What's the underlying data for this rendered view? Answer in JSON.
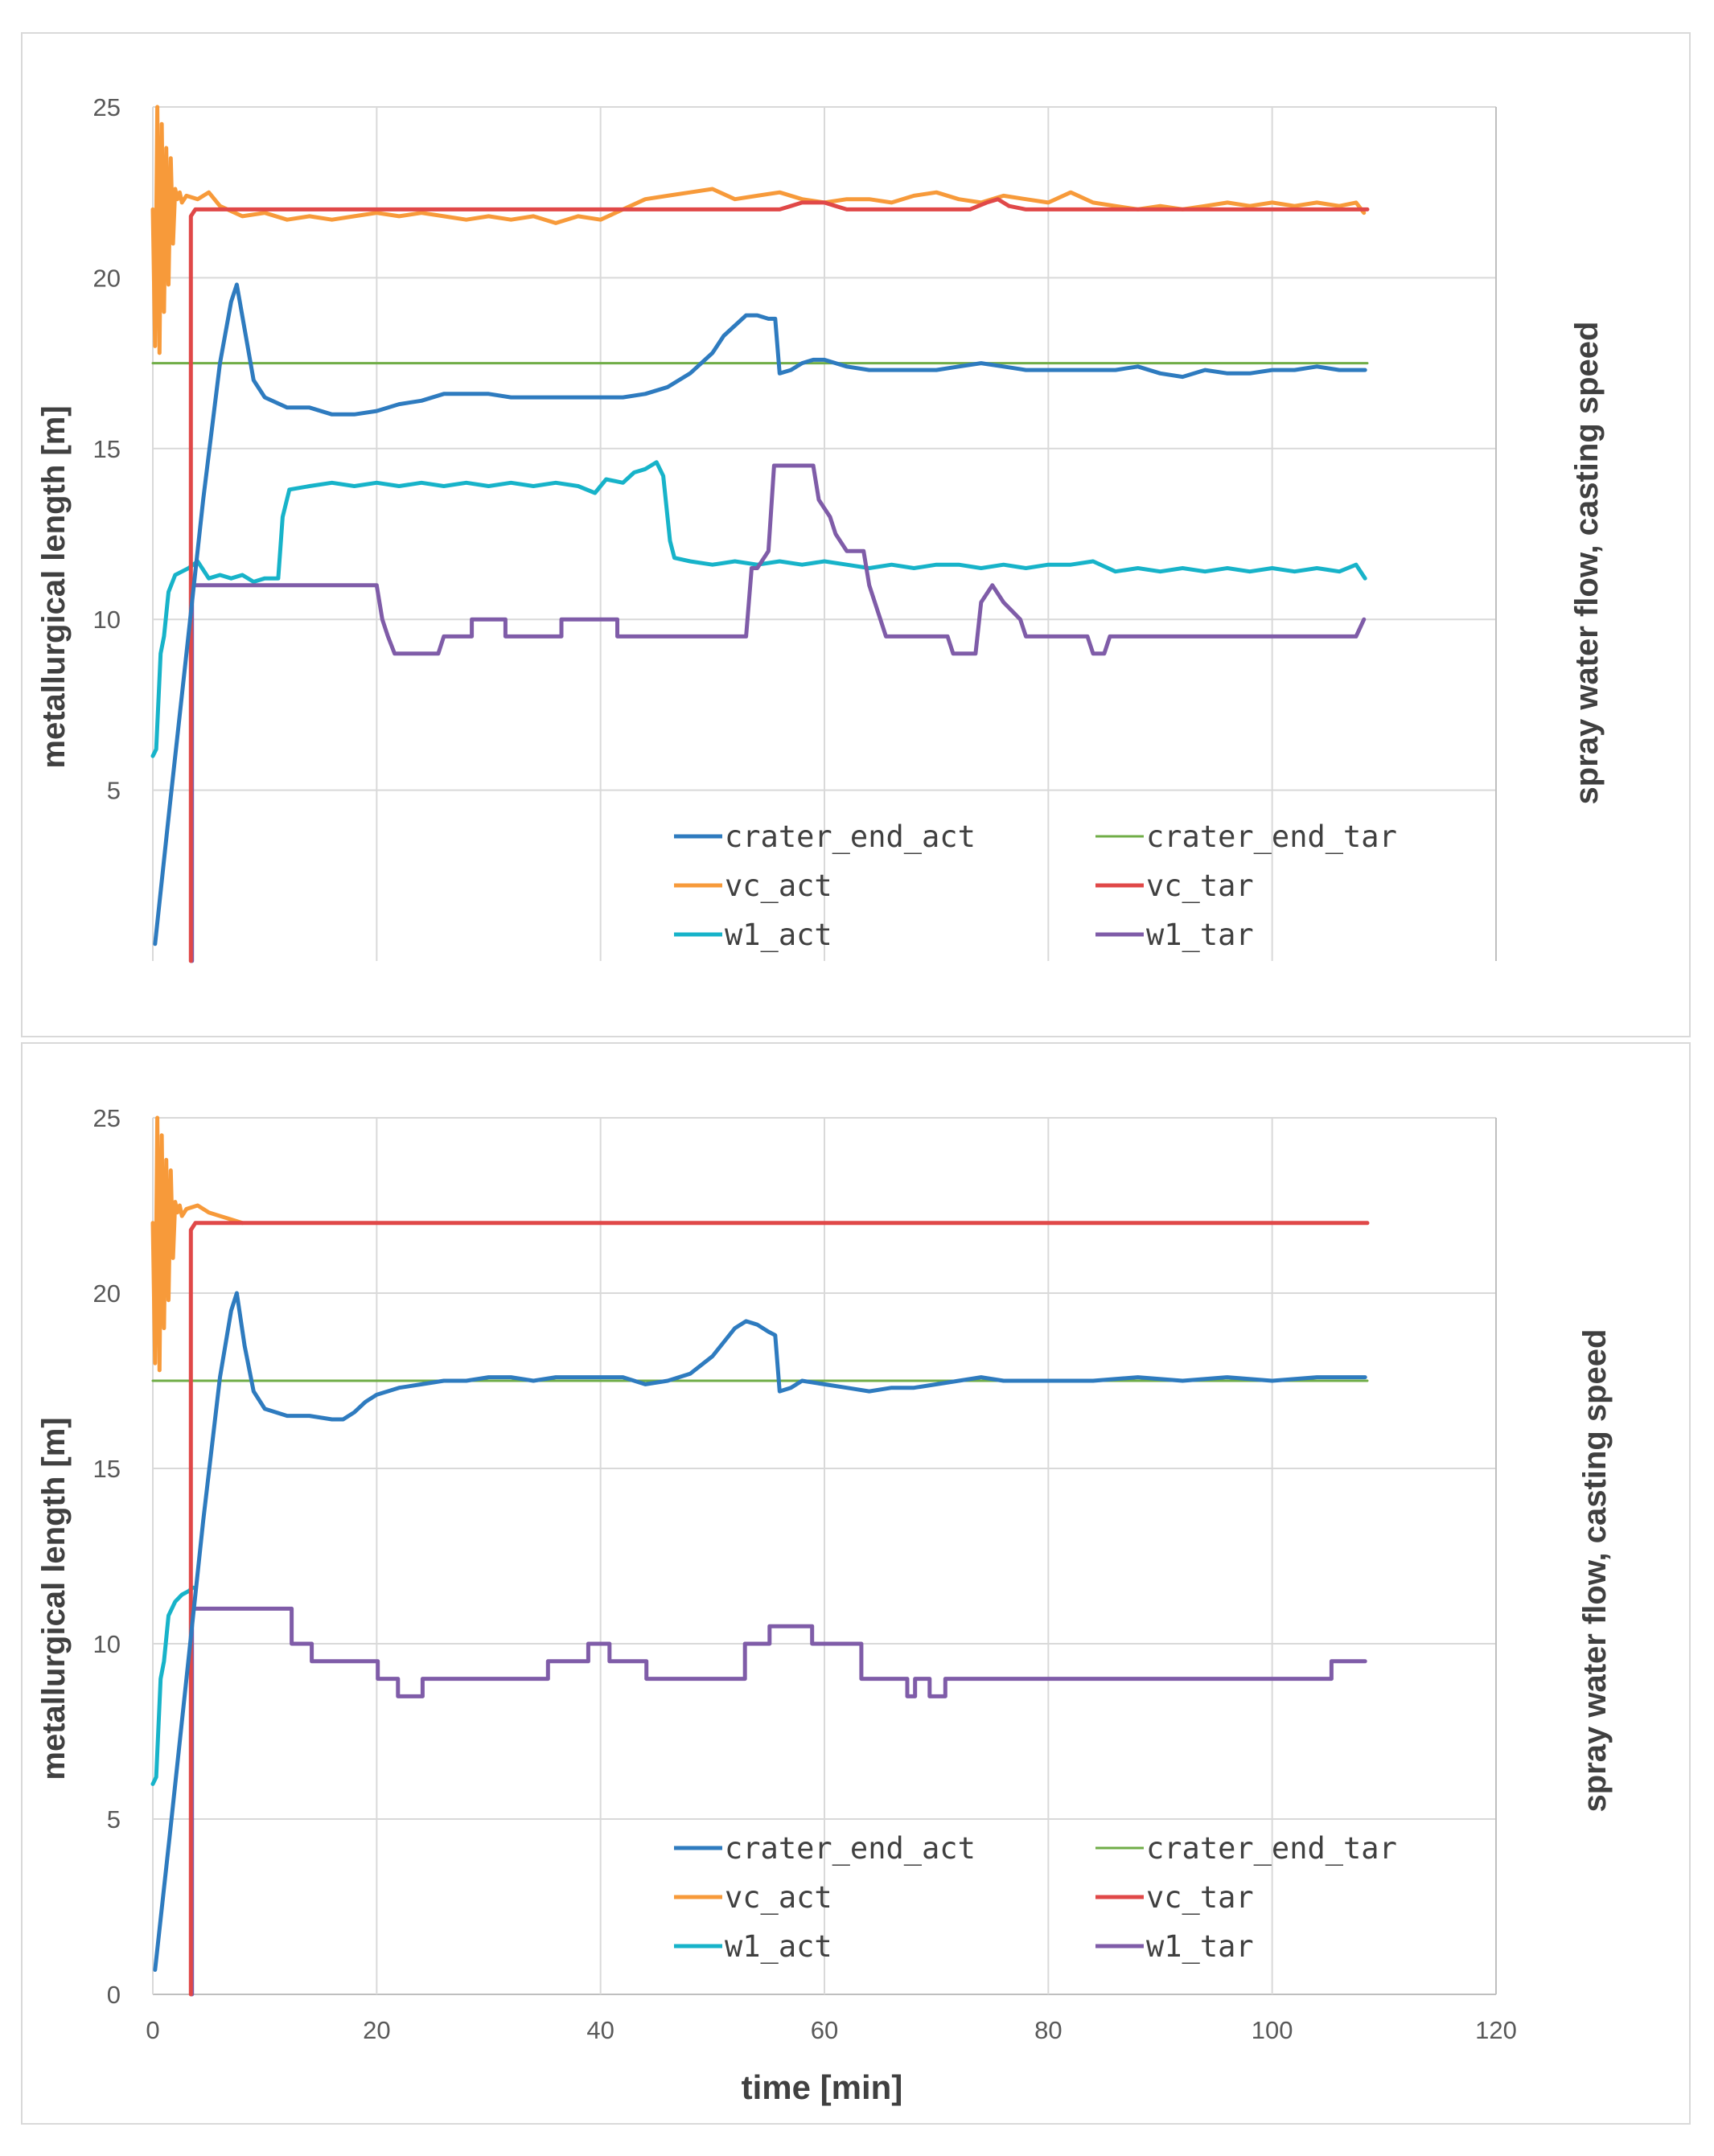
{
  "chart_data": [
    {
      "type": "line",
      "xlabel": "",
      "ylabel": "metallurgical length [m]",
      "y2label": "spray water flow, casting speed",
      "xlim": [
        0,
        120
      ],
      "ylim": [
        0,
        25
      ],
      "xticks": [],
      "yticks": [
        "5",
        "10",
        "15",
        "20",
        "25"
      ],
      "grid": true,
      "legend_position": "bottom-right",
      "series": [
        {
          "name": "crater_end_tar",
          "color": "#70ad47",
          "width": 3,
          "x": [
            0,
            108.5
          ],
          "y": [
            17.5,
            17.5
          ]
        },
        {
          "name": "w1_act",
          "color": "#17b3c9",
          "width": 5,
          "x": [
            0,
            0.3,
            0.7,
            1.0,
            1.4,
            2.0,
            2.6,
            3.2,
            4.0,
            5.0,
            6.0,
            7.0,
            8.0,
            9.0,
            10.0,
            11.2,
            11.6,
            12.2,
            14,
            16,
            18,
            20,
            22,
            24,
            26,
            28,
            30,
            32,
            34,
            36,
            38,
            39.5,
            40.5,
            42,
            43,
            44,
            45,
            45.6,
            46.2,
            46.6,
            48,
            50,
            52,
            54,
            56,
            58,
            60,
            62,
            64,
            66,
            68,
            70,
            72,
            74,
            76,
            78,
            80,
            82,
            84,
            86,
            88,
            90,
            92,
            94,
            96,
            98,
            100,
            102,
            104,
            106,
            107.5,
            108.3
          ],
          "y": [
            6.0,
            6.2,
            9.0,
            9.5,
            10.8,
            11.3,
            11.4,
            11.5,
            11.7,
            11.2,
            11.3,
            11.2,
            11.3,
            11.1,
            11.2,
            11.2,
            13.0,
            13.8,
            13.9,
            14.0,
            13.9,
            14.0,
            13.9,
            14.0,
            13.9,
            14.0,
            13.9,
            14.0,
            13.9,
            14.0,
            13.9,
            13.7,
            14.1,
            14.0,
            14.3,
            14.4,
            14.6,
            14.2,
            12.3,
            11.8,
            11.7,
            11.6,
            11.7,
            11.6,
            11.7,
            11.6,
            11.7,
            11.6,
            11.5,
            11.6,
            11.5,
            11.6,
            11.6,
            11.5,
            11.6,
            11.5,
            11.6,
            11.6,
            11.7,
            11.4,
            11.5,
            11.4,
            11.5,
            11.4,
            11.5,
            11.4,
            11.5,
            11.4,
            11.5,
            11.4,
            11.6,
            11.2
          ]
        },
        {
          "name": "w1_tar",
          "color": "#7f5ca8",
          "width": 5,
          "x": [
            3.5,
            3.5,
            4.0,
            6,
            10,
            15,
            20,
            20.5,
            21,
            21.6,
            25.5,
            26,
            28.5,
            28.5,
            31.5,
            31.5,
            36.5,
            36.5,
            41.5,
            41.5,
            48,
            53,
            53.5,
            54,
            55,
            55.5,
            56,
            59,
            59.5,
            60.5,
            61,
            62,
            63.5,
            64,
            65,
            65.5,
            71,
            71.5,
            73.5,
            74,
            75,
            76,
            77.5,
            78,
            83.5,
            84,
            85,
            85.5,
            107.5,
            108.2
          ],
          "y": [
            0,
            11.0,
            11.0,
            11.0,
            11.0,
            11.0,
            11.0,
            10.0,
            9.5,
            9.0,
            9.0,
            9.5,
            9.5,
            10.0,
            10.0,
            9.5,
            9.5,
            10.0,
            10.0,
            9.5,
            9.5,
            9.5,
            11.5,
            11.5,
            12.0,
            14.5,
            14.5,
            14.5,
            13.5,
            13.0,
            12.5,
            12.0,
            12.0,
            11.0,
            10.0,
            9.5,
            9.5,
            9.0,
            9.0,
            10.5,
            11.0,
            10.5,
            10.0,
            9.5,
            9.5,
            9.0,
            9.0,
            9.5,
            9.5,
            10.0
          ]
        },
        {
          "name": "vc_act",
          "color": "#f79a3a",
          "width": 5,
          "x": [
            0,
            0.2,
            0.4,
            0.6,
            0.8,
            1.0,
            1.2,
            1.4,
            1.6,
            1.8,
            2.0,
            2.2,
            2.4,
            2.6,
            3.0,
            4.0,
            5.0,
            6.0,
            8,
            10,
            12,
            14,
            16,
            18,
            20,
            22,
            24,
            26,
            28,
            30,
            32,
            34,
            36,
            38,
            40,
            42,
            44,
            46,
            48,
            50,
            52,
            54,
            56,
            58,
            60,
            62,
            64,
            66,
            68,
            70,
            72,
            74,
            76,
            78,
            80,
            82,
            84,
            86,
            88,
            90,
            92,
            94,
            96,
            98,
            100,
            102,
            104,
            106,
            107.5,
            108.2
          ],
          "y": [
            22.0,
            18.0,
            25.0,
            17.8,
            24.5,
            19.0,
            23.8,
            19.8,
            23.5,
            21.0,
            22.6,
            22.3,
            22.5,
            22.2,
            22.4,
            22.3,
            22.5,
            22.1,
            21.8,
            21.9,
            21.7,
            21.8,
            21.7,
            21.8,
            21.9,
            21.8,
            21.9,
            21.8,
            21.7,
            21.8,
            21.7,
            21.8,
            21.6,
            21.8,
            21.7,
            22.0,
            22.3,
            22.4,
            22.5,
            22.6,
            22.3,
            22.4,
            22.5,
            22.3,
            22.2,
            22.3,
            22.3,
            22.2,
            22.4,
            22.5,
            22.3,
            22.2,
            22.4,
            22.3,
            22.2,
            22.5,
            22.2,
            22.1,
            22.0,
            22.1,
            22.0,
            22.1,
            22.2,
            22.1,
            22.2,
            22.1,
            22.2,
            22.1,
            22.2,
            21.9
          ]
        },
        {
          "name": "vc_tar",
          "color": "#e04848",
          "width": 5,
          "x": [
            3.4,
            3.4,
            3.8,
            56,
            57,
            58,
            60,
            61,
            62,
            63,
            73,
            74.5,
            75.5,
            76.5,
            78,
            108.5
          ],
          "y": [
            0,
            21.8,
            22.0,
            22.0,
            22.1,
            22.2,
            22.2,
            22.1,
            22.0,
            22.0,
            22.0,
            22.2,
            22.3,
            22.1,
            22.0,
            22.0
          ]
        },
        {
          "name": "crater_end_act",
          "color": "#2e7bbf",
          "width": 5,
          "x": [
            0.2,
            1.5,
            3.0,
            4.5,
            6.0,
            7.0,
            7.5,
            8.2,
            9.0,
            10,
            12,
            14,
            16,
            18,
            20,
            22,
            24,
            26,
            28,
            30,
            32,
            34,
            36,
            38,
            40,
            42,
            44,
            46,
            48,
            50,
            51,
            52,
            53,
            54,
            55,
            55.6,
            56,
            57,
            58,
            59,
            60,
            61,
            62,
            64,
            66,
            68,
            70,
            72,
            74,
            76,
            78,
            80,
            82,
            84,
            86,
            88,
            90,
            92,
            94,
            96,
            98,
            100,
            102,
            104,
            106,
            108.3
          ],
          "y": [
            0.5,
            4.5,
            9.0,
            13.5,
            17.5,
            19.3,
            19.8,
            18.5,
            17.0,
            16.5,
            16.2,
            16.2,
            16.0,
            16.0,
            16.1,
            16.3,
            16.4,
            16.6,
            16.6,
            16.6,
            16.5,
            16.5,
            16.5,
            16.5,
            16.5,
            16.5,
            16.6,
            16.8,
            17.2,
            17.8,
            18.3,
            18.6,
            18.9,
            18.9,
            18.8,
            18.8,
            17.2,
            17.3,
            17.5,
            17.6,
            17.6,
            17.5,
            17.4,
            17.3,
            17.3,
            17.3,
            17.3,
            17.4,
            17.5,
            17.4,
            17.3,
            17.3,
            17.3,
            17.3,
            17.3,
            17.4,
            17.2,
            17.1,
            17.3,
            17.2,
            17.2,
            17.3,
            17.3,
            17.4,
            17.3,
            17.3
          ]
        }
      ],
      "legend": [
        {
          "label": "crater_end_act",
          "color": "#2e7bbf",
          "width": 5
        },
        {
          "label": "crater_end_tar",
          "color": "#70ad47",
          "width": 3
        },
        {
          "label": "vc_act",
          "color": "#f79a3a",
          "width": 5
        },
        {
          "label": "vc_tar",
          "color": "#e04848",
          "width": 5
        },
        {
          "label": "w1_act",
          "color": "#17b3c9",
          "width": 5
        },
        {
          "label": "w1_tar",
          "color": "#7f5ca8",
          "width": 5
        }
      ]
    },
    {
      "type": "line",
      "xlabel": "time [min]",
      "ylabel": "metallurgical length [m]",
      "y2label": "spray water flow, casting speed",
      "xlim": [
        0,
        120
      ],
      "ylim": [
        0,
        25
      ],
      "xticks": [
        "0",
        "20",
        "40",
        "60",
        "80",
        "100",
        "120"
      ],
      "yticks": [
        "0",
        "5",
        "10",
        "15",
        "20",
        "25"
      ],
      "grid": true,
      "legend_position": "bottom-right",
      "series": [
        {
          "name": "crater_end_tar",
          "color": "#70ad47",
          "width": 3,
          "x": [
            0,
            108.5
          ],
          "y": [
            17.5,
            17.5
          ]
        },
        {
          "name": "w1_act",
          "color": "#17b3c9",
          "width": 5,
          "x": [
            0,
            0.3,
            0.7,
            1.0,
            1.4,
            2.0,
            2.6,
            3.2,
            3.6
          ],
          "y": [
            6.0,
            6.2,
            9.0,
            9.5,
            10.8,
            11.2,
            11.4,
            11.5,
            11.6
          ]
        },
        {
          "name": "w1_tar",
          "color": "#7f5ca8",
          "width": 5,
          "x": [
            3.5,
            3.5,
            4.0,
            12.4,
            12.4,
            14.2,
            14.2,
            20.1,
            20.1,
            21.9,
            21.9,
            24.1,
            24.1,
            35.3,
            35.3,
            38.9,
            38.9,
            40.8,
            40.8,
            44.1,
            44.1,
            52.9,
            52.9,
            55.1,
            55.1,
            58.9,
            58.9,
            63.3,
            63.3,
            67.4,
            67.4,
            68.1,
            68.1,
            69.4,
            69.4,
            70.8,
            70.8,
            105.3,
            105.3,
            108.3
          ],
          "y": [
            0,
            11.0,
            11.0,
            11.0,
            10.0,
            10.0,
            9.5,
            9.5,
            9.0,
            9.0,
            8.5,
            8.5,
            9.0,
            9.0,
            9.5,
            9.5,
            10.0,
            10.0,
            9.5,
            9.5,
            9.0,
            9.0,
            10.0,
            10.0,
            10.5,
            10.5,
            10.0,
            10.0,
            9.0,
            9.0,
            8.5,
            8.5,
            9.0,
            9.0,
            8.5,
            8.5,
            9.0,
            9.0,
            9.5,
            9.5
          ]
        },
        {
          "name": "vc_act",
          "color": "#f79a3a",
          "width": 5,
          "x": [
            0,
            0.2,
            0.4,
            0.6,
            0.8,
            1.0,
            1.2,
            1.4,
            1.6,
            1.8,
            2.0,
            2.2,
            2.4,
            2.6,
            3.0,
            4.0,
            5.0,
            6.0,
            7.0,
            8.0
          ],
          "y": [
            22.0,
            18.0,
            25.0,
            17.8,
            24.5,
            19.0,
            23.8,
            19.8,
            23.5,
            21.0,
            22.6,
            22.3,
            22.5,
            22.2,
            22.4,
            22.5,
            22.3,
            22.2,
            22.1,
            22.0
          ]
        },
        {
          "name": "vc_tar",
          "color": "#e04848",
          "width": 5,
          "x": [
            3.4,
            3.4,
            3.8,
            108.5
          ],
          "y": [
            0,
            21.8,
            22.0,
            22.0
          ]
        },
        {
          "name": "crater_end_act",
          "color": "#2e7bbf",
          "width": 5,
          "x": [
            0.2,
            1.5,
            3.0,
            4.5,
            6.0,
            7.0,
            7.5,
            8.2,
            9.0,
            10,
            12,
            14,
            16,
            17,
            18,
            19,
            20,
            22,
            24,
            26,
            28,
            30,
            32,
            34,
            36,
            38,
            40,
            42,
            44,
            46,
            48,
            50,
            51,
            52,
            53,
            54,
            55,
            55.6,
            56,
            57,
            58,
            60,
            62,
            64,
            66,
            68,
            70,
            72,
            74,
            76,
            80,
            84,
            88,
            92,
            96,
            100,
            104,
            108.3
          ],
          "y": [
            0.7,
            4.5,
            9.0,
            13.5,
            17.6,
            19.5,
            20.0,
            18.5,
            17.2,
            16.7,
            16.5,
            16.5,
            16.4,
            16.4,
            16.6,
            16.9,
            17.1,
            17.3,
            17.4,
            17.5,
            17.5,
            17.6,
            17.6,
            17.5,
            17.6,
            17.6,
            17.6,
            17.6,
            17.4,
            17.5,
            17.7,
            18.2,
            18.6,
            19.0,
            19.2,
            19.1,
            18.9,
            18.8,
            17.2,
            17.3,
            17.5,
            17.4,
            17.3,
            17.2,
            17.3,
            17.3,
            17.4,
            17.5,
            17.6,
            17.5,
            17.5,
            17.5,
            17.6,
            17.5,
            17.6,
            17.5,
            17.6,
            17.6
          ]
        }
      ],
      "legend": [
        {
          "label": "crater_end_act",
          "color": "#2e7bbf",
          "width": 5
        },
        {
          "label": "crater_end_tar",
          "color": "#70ad47",
          "width": 3
        },
        {
          "label": "vc_act",
          "color": "#f79a3a",
          "width": 5
        },
        {
          "label": "vc_tar",
          "color": "#e04848",
          "width": 5
        },
        {
          "label": "w1_act",
          "color": "#17b3c9",
          "width": 5
        },
        {
          "label": "w1_tar",
          "color": "#7f5ca8",
          "width": 5
        }
      ]
    }
  ]
}
